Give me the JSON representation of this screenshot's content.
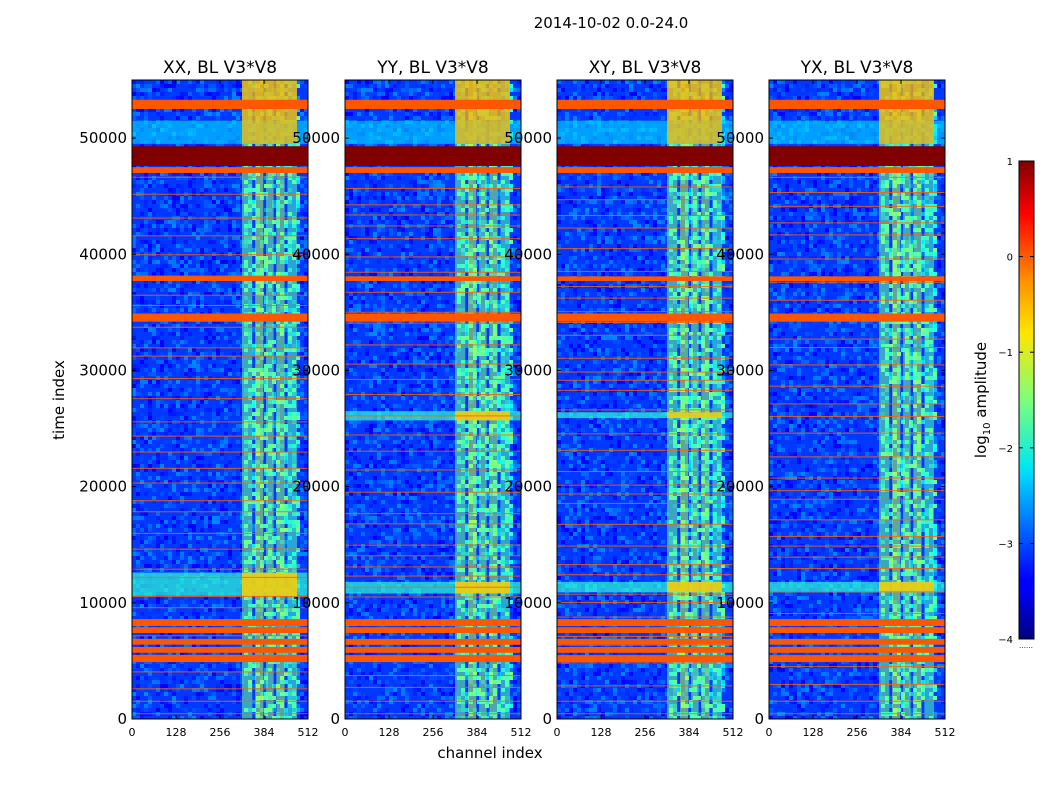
{
  "suptitle": "2014-10-02 0.0-24.0",
  "chart_data": [
    {
      "type": "heatmap",
      "title": "XX, BL V3*V8",
      "xlabel": "",
      "ylabel": "time index",
      "xlim": [
        0,
        512
      ],
      "ylim": [
        0,
        55000
      ],
      "xticks": [
        0,
        128,
        256,
        384,
        512
      ],
      "yticks": [
        0,
        10000,
        20000,
        30000,
        40000,
        50000
      ],
      "rfi_channel_range": [
        320,
        480
      ],
      "flagged_time_bands": [
        [
          4900,
          5500
        ],
        [
          5700,
          6200
        ],
        [
          6400,
          6900
        ],
        [
          7400,
          7900
        ],
        [
          8000,
          8600
        ],
        [
          34200,
          34900
        ],
        [
          37700,
          38100
        ],
        [
          47000,
          47500
        ],
        [
          52500,
          53300
        ]
      ],
      "saturated_time_band": [
        47600,
        49300
      ],
      "enhanced_time_bands": [
        [
          10600,
          12600
        ]
      ]
    },
    {
      "type": "heatmap",
      "title": "YY, BL V3*V8",
      "xlabel": "channel index",
      "ylabel": "",
      "xlim": [
        0,
        512
      ],
      "ylim": [
        0,
        55000
      ],
      "xticks": [
        0,
        128,
        256,
        384,
        512
      ],
      "yticks": [
        0,
        10000,
        20000,
        30000,
        40000,
        50000
      ],
      "rfi_channel_range": [
        320,
        480
      ],
      "flagged_time_bands": [
        [
          4900,
          5500
        ],
        [
          5700,
          6200
        ],
        [
          6400,
          6900
        ],
        [
          7400,
          7900
        ],
        [
          8000,
          8600
        ],
        [
          34200,
          34900
        ],
        [
          37700,
          38100
        ],
        [
          47000,
          47500
        ],
        [
          52500,
          53300
        ]
      ],
      "saturated_time_band": [
        47600,
        49300
      ],
      "enhanced_time_bands": [
        [
          10800,
          11800
        ],
        [
          25700,
          26500
        ]
      ]
    },
    {
      "type": "heatmap",
      "title": "XY, BL V3*V8",
      "xlabel": "",
      "ylabel": "",
      "xlim": [
        0,
        512
      ],
      "ylim": [
        0,
        55000
      ],
      "xticks": [
        0,
        128,
        256,
        384,
        512
      ],
      "yticks": [
        0,
        10000,
        20000,
        30000,
        40000,
        50000
      ],
      "rfi_channel_range": [
        320,
        480
      ],
      "flagged_time_bands": [
        [
          4900,
          5500
        ],
        [
          5700,
          6200
        ],
        [
          6400,
          6900
        ],
        [
          7400,
          7900
        ],
        [
          8000,
          8600
        ],
        [
          34200,
          34900
        ],
        [
          37700,
          38100
        ],
        [
          47000,
          47500
        ],
        [
          52500,
          53300
        ]
      ],
      "saturated_time_band": [
        47600,
        49300
      ],
      "enhanced_time_bands": [
        [
          10900,
          11800
        ],
        [
          25900,
          26400
        ]
      ]
    },
    {
      "type": "heatmap",
      "title": "YX, BL V3*V8",
      "xlabel": "",
      "ylabel": "",
      "xlim": [
        0,
        512
      ],
      "ylim": [
        0,
        55000
      ],
      "xticks": [
        0,
        128,
        256,
        384,
        512
      ],
      "yticks": [
        0,
        10000,
        20000,
        30000,
        40000,
        50000
      ],
      "rfi_channel_range": [
        320,
        480
      ],
      "flagged_time_bands": [
        [
          4900,
          5500
        ],
        [
          5700,
          6200
        ],
        [
          6400,
          6900
        ],
        [
          7400,
          7900
        ],
        [
          8000,
          8600
        ],
        [
          34200,
          34900
        ],
        [
          37700,
          38100
        ],
        [
          47000,
          47500
        ],
        [
          52500,
          53300
        ]
      ],
      "saturated_time_band": [
        47600,
        49300
      ],
      "enhanced_time_bands": [
        [
          10900,
          11800
        ]
      ]
    }
  ],
  "colorbar": {
    "label": "log10 amplitude",
    "label_base": "log",
    "label_sub": "10",
    "label_rest": " amplitude",
    "range": [
      -4,
      1
    ],
    "ticks": [
      1,
      0,
      -1,
      -2,
      -3,
      -4
    ],
    "tick_labels": [
      "1",
      "0",
      "−1",
      "−2",
      "−3",
      "−4"
    ],
    "colormap": "jet",
    "footer": "……"
  }
}
